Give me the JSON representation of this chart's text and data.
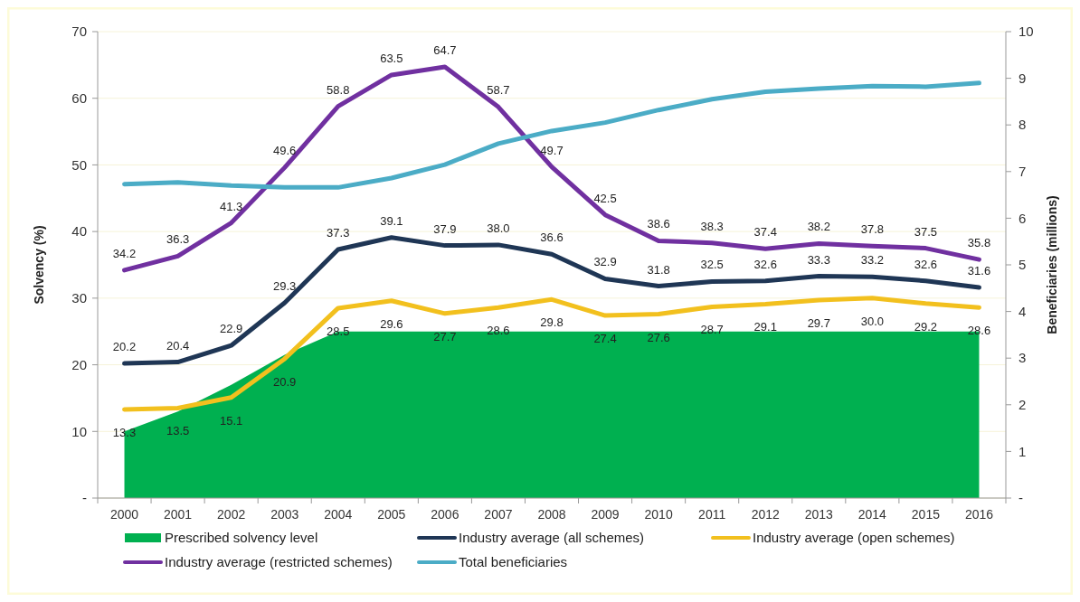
{
  "chart_data": {
    "type": "line",
    "categories": [
      "2000",
      "2001",
      "2002",
      "2003",
      "2004",
      "2005",
      "2006",
      "2007",
      "2008",
      "2009",
      "2010",
      "2011",
      "2012",
      "2013",
      "2014",
      "2015",
      "2016"
    ],
    "ylabel": "Solvency (%)",
    "y2label": "Beneficiaries (millions)",
    "ylim": [
      0,
      70
    ],
    "yticks": [
      {
        "value": 0,
        "label": "-"
      },
      10,
      20,
      30,
      40,
      50,
      60,
      70
    ],
    "y2lim": [
      0,
      10
    ],
    "y2ticks": [
      {
        "value": 0,
        "label": "-"
      },
      1,
      2,
      3,
      4,
      5,
      6,
      7,
      8,
      9,
      10
    ],
    "grid": "y",
    "legend": "bottom",
    "series": [
      {
        "name": "Prescribed solvency level",
        "type": "area",
        "color": "#00b050",
        "values": [
          10,
          13,
          17,
          21.5,
          25,
          25,
          25,
          25,
          25,
          25,
          25,
          25,
          25,
          25,
          25,
          25,
          25
        ]
      },
      {
        "name": "Industry average (all schemes)",
        "color": "#1f3655",
        "values": [
          20.2,
          20.4,
          22.9,
          29.3,
          37.3,
          39.1,
          37.9,
          38.0,
          36.6,
          32.9,
          31.8,
          32.5,
          32.6,
          33.3,
          33.2,
          32.6,
          31.6
        ],
        "value_labels": [
          "20.2",
          "20.4",
          "22.9",
          "29.3",
          "37.3",
          "39.1",
          "37.9",
          "38.0",
          "36.6",
          "32.9",
          "31.8",
          "32.5",
          "32.6",
          "33.3",
          "33.2",
          "32.6",
          "31.6"
        ]
      },
      {
        "name": "Industry average (open schemes)",
        "color": "#f2c01e",
        "values": [
          13.3,
          13.5,
          15.1,
          20.9,
          28.5,
          29.6,
          27.7,
          28.6,
          29.8,
          27.4,
          27.6,
          28.7,
          29.1,
          29.7,
          30.0,
          29.2,
          28.6
        ],
        "value_labels": [
          "13.3",
          "13.5",
          "15.1",
          "20.9",
          "28.5",
          "29.6",
          "27.7",
          "28.6",
          "29.8",
          "27.4",
          "27.6",
          "28.7",
          "29.1",
          "29.7",
          "30.0",
          "29.2",
          "28.6"
        ]
      },
      {
        "name": "Industry average (restricted schemes)",
        "color": "#7030a0",
        "values": [
          34.2,
          36.3,
          41.3,
          49.6,
          58.8,
          63.5,
          64.7,
          58.7,
          49.7,
          42.5,
          38.6,
          38.3,
          37.4,
          38.2,
          37.8,
          37.5,
          35.8
        ],
        "value_labels": [
          "34.2",
          "36.3",
          "41.3",
          "49.6",
          "58.8",
          "63.5",
          "64.7",
          "58.7",
          "49.7",
          "42.5",
          "38.6",
          "38.3",
          "37.4",
          "38.2",
          "37.8",
          "37.5",
          "35.8"
        ]
      },
      {
        "name": "Total beneficiaries",
        "color": "#4bacc6",
        "axis": "y2",
        "values": [
          6.73,
          6.77,
          6.7,
          6.66,
          6.66,
          6.86,
          7.15,
          7.6,
          7.87,
          8.05,
          8.32,
          8.55,
          8.71,
          8.78,
          8.83,
          8.82,
          8.9
        ]
      }
    ]
  }
}
